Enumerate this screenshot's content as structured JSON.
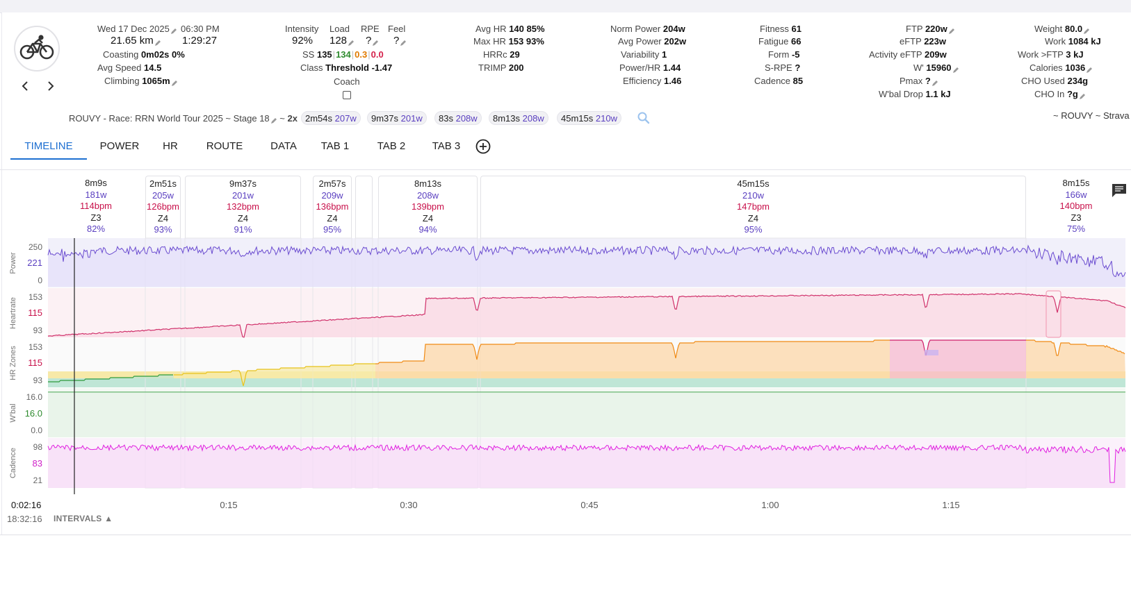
{
  "header": {
    "date": "Wed 17 Dec 2025",
    "time": "06:30 PM",
    "distance": "21.65 km",
    "duration": "1:29:27",
    "coasting_label": "Coasting",
    "coasting_value": "0m02s",
    "coasting_pct": "0%",
    "avg_speed_label": "Avg Speed",
    "avg_speed_value": "14.5",
    "climbing_label": "Climbing",
    "climbing_value": "1065m"
  },
  "load": {
    "intensity_label": "Intensity",
    "intensity_value": "92%",
    "load_label": "Load",
    "load_value": "128",
    "rpe_label": "RPE",
    "rpe_value": "?",
    "feel_label": "Feel",
    "feel_value": "?",
    "ss_label": "SS",
    "ss_value": "135",
    "ss_green": "134",
    "ss_orange": "0.3",
    "ss_red": "0.0",
    "class_label": "Class",
    "class_value": "Threshold -1.47",
    "coach_label": "Coach"
  },
  "hr": {
    "avg_hr_label": "Avg HR",
    "avg_hr_value": "140 85%",
    "max_hr_label": "Max HR",
    "max_hr_value": "153 93%",
    "hrrc_label": "HRRc",
    "hrrc_value": "29",
    "trimp_label": "TRIMP",
    "trimp_value": "200"
  },
  "power": {
    "norm_power_label": "Norm Power",
    "norm_power_value": "204w",
    "avg_power_label": "Avg Power",
    "avg_power_value": "202w",
    "variability_label": "Variability",
    "variability_value": "1",
    "power_hr_label": "Power/HR",
    "power_hr_value": "1.44",
    "efficiency_label": "Efficiency",
    "efficiency_value": "1.46"
  },
  "fitness": {
    "fitness_label": "Fitness",
    "fitness_value": "61",
    "fatigue_label": "Fatigue",
    "fatigue_value": "66",
    "form_label": "Form",
    "form_value": "-5",
    "srpe_label": "S-RPE",
    "srpe_value": "?",
    "cadence_label": "Cadence",
    "cadence_value": "85"
  },
  "ftp": {
    "ftp_label": "FTP",
    "ftp_value": "220w",
    "eftp_label": "eFTP",
    "eftp_value": "223w",
    "act_eftp_label": "Activity eFTP",
    "act_eftp_value": "209w",
    "wprime_label": "W'",
    "wprime_value": "15960",
    "pmax_label": "Pmax",
    "pmax_value": "?",
    "wbal_label": "W'bal Drop",
    "wbal_value": "1.1 kJ"
  },
  "body": {
    "weight_label": "Weight",
    "weight_value": "80.0",
    "work_label": "Work",
    "work_value": "1084 kJ",
    "work_ftp_label": "Work >FTP",
    "work_ftp_value": "3 kJ",
    "calories_label": "Calories",
    "calories_value": "1036",
    "cho_used_label": "CHO Used",
    "cho_used_value": "234g",
    "cho_in_label": "CHO In",
    "cho_in_value": "?g"
  },
  "activity": {
    "name": "ROUVY - Race: RRN World Tour 2025 ~ Stage 18",
    "source": "~ ROUVY ~ Strava",
    "tilde": "~",
    "repeat": "2x",
    "chips": [
      {
        "dur": "2m54s",
        "pw": "207w"
      },
      {
        "dur": "9m37s",
        "pw": "201w"
      },
      {
        "dur": "83s",
        "pw": "208w"
      },
      {
        "dur": "8m13s",
        "pw": "208w"
      },
      {
        "dur": "45m15s",
        "pw": "210w"
      }
    ]
  },
  "tabs": [
    "TIMELINE",
    "POWER",
    "HR",
    "ROUTE",
    "DATA",
    "TAB 1",
    "TAB 2",
    "TAB 3"
  ],
  "intervals": [
    {
      "dur": "8m9s",
      "pw": "181w",
      "hr": "114bpm",
      "zone": "Z3",
      "pct": "82%"
    },
    {
      "dur": "2m51s",
      "pw": "205w",
      "hr": "126bpm",
      "zone": "Z4",
      "pct": "93%"
    },
    {
      "dur": "9m37s",
      "pw": "201w",
      "hr": "132bpm",
      "zone": "Z4",
      "pct": "91%"
    },
    {
      "dur": "2m57s",
      "pw": "209w",
      "hr": "136bpm",
      "zone": "Z4",
      "pct": "95%"
    },
    {
      "dur": "8m13s",
      "pw": "208w",
      "hr": "139bpm",
      "zone": "Z4",
      "pct": "94%"
    },
    {
      "dur": "45m15s",
      "pw": "210w",
      "hr": "147bpm",
      "zone": "Z4",
      "pct": "95%"
    },
    {
      "dur": "8m15s",
      "pw": "166w",
      "hr": "140bpm",
      "zone": "Z3",
      "pct": "75%"
    }
  ],
  "axes": {
    "power": {
      "label": "Power",
      "top": "250",
      "mid": "221",
      "bot": "0"
    },
    "heartrate": {
      "label": "Heartrate",
      "top": "153",
      "mid": "115",
      "bot": "93"
    },
    "hrzones": {
      "label": "HR Zones",
      "top": "153",
      "mid": "115",
      "bot": "93"
    },
    "wbal": {
      "label": "W'bal",
      "top": "16.0",
      "mid": "16.0",
      "bot": "0.0"
    },
    "cadence": {
      "label": "Cadence",
      "top": "98",
      "mid": "83",
      "bot": "21"
    }
  },
  "time_ticks": [
    "0:15",
    "0:30",
    "0:45",
    "1:00",
    "1:15"
  ],
  "cursor_time": "0:02:16",
  "clock_time": "18:32:16",
  "intervals_label": "INTERVALS",
  "colors": {
    "accent": "#1d6fd1",
    "power": "#6a4bd0",
    "heartrate": "#d0306a",
    "cadence": "#e020e0",
    "wbal": "#2e9a3a"
  },
  "icons": {
    "activity": "bicycle-icon",
    "prev": "chevron-left-icon",
    "next": "chevron-right-icon",
    "search": "search-icon",
    "add_tab": "plus-circle-icon",
    "comments": "comment-icon"
  }
}
